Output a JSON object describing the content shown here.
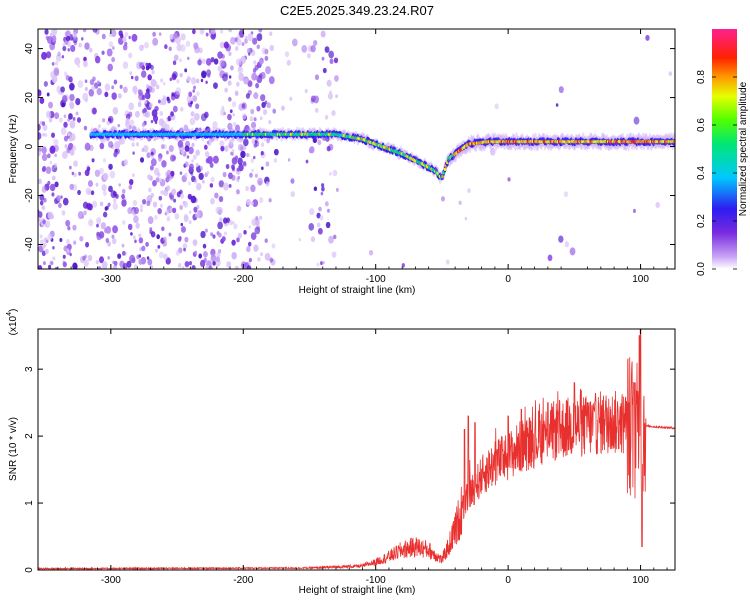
{
  "title": "C2E5.2025.349.23.24.R07",
  "chart_data": [
    {
      "type": "heatmap",
      "name": "spectrogram",
      "xlabel": "Height of straight line (km)",
      "ylabel": "Frequency (Hz)",
      "xlim": [
        -355,
        126
      ],
      "ylim": [
        -50,
        48
      ],
      "xticks": [
        -300,
        -200,
        -100,
        0,
        100
      ],
      "xtick_labels": [
        "-300",
        "-200",
        "-100",
        "0",
        "100"
      ],
      "yticks": [
        -40,
        -20,
        0,
        20,
        40
      ],
      "ytick_labels": [
        "-40",
        "-20",
        "0",
        "20",
        "40"
      ],
      "ridge": {
        "x": [
          -315,
          -280,
          -250,
          -220,
          -190,
          -160,
          -130,
          -110,
          -95,
          -80,
          -65,
          -55,
          -50,
          -45,
          -40,
          -30,
          -15,
          0,
          30,
          60,
          90,
          110,
          126
        ],
        "freq": [
          5,
          5,
          5,
          5,
          5,
          5,
          5,
          3,
          0,
          -3,
          -7,
          -10,
          -13,
          -5,
          -3,
          1,
          2,
          2,
          2,
          2,
          2,
          2,
          2
        ]
      },
      "colorbar": {
        "label": "Normalized spectral amplitude",
        "range": [
          0,
          1
        ],
        "ticks": [
          0.0,
          0.2,
          0.4,
          0.6,
          0.8
        ],
        "tick_labels": [
          "0.0",
          "0.2",
          "0.4",
          "0.6",
          "0.8"
        ]
      }
    },
    {
      "type": "line",
      "name": "snr",
      "xlabel": "Height of straight line (km)",
      "ylabel": "SNR (10 * v/v)",
      "scale_label": "(x10",
      "scale_exp": "4",
      "scale_close": ")",
      "xlim": [
        -355,
        126
      ],
      "ylim": [
        0,
        3.6
      ],
      "xticks": [
        -300,
        -200,
        -100,
        0,
        100
      ],
      "xtick_labels": [
        "-300",
        "-200",
        "-100",
        "0",
        "100"
      ],
      "yticks": [
        0,
        1,
        2,
        3
      ],
      "ytick_labels": [
        "0",
        "1",
        "2",
        "3"
      ],
      "color": "#e8312f",
      "envelope": {
        "x": [
          -355,
          -150,
          -110,
          -100,
          -90,
          -80,
          -70,
          -60,
          -50,
          -45,
          -40,
          -35,
          -30,
          -25,
          -20,
          -10,
          0,
          10,
          20,
          30,
          40,
          50,
          60,
          70,
          80,
          90,
          95,
          100,
          103,
          106,
          110,
          126
        ],
        "y": [
          0.02,
          0.03,
          0.06,
          0.12,
          0.2,
          0.3,
          0.35,
          0.3,
          0.15,
          0.35,
          0.6,
          0.9,
          1.1,
          1.25,
          1.4,
          1.6,
          1.7,
          1.85,
          1.95,
          2.05,
          2.1,
          2.15,
          2.15,
          2.2,
          2.2,
          2.2,
          2.15,
          2.0,
          2.15,
          2.15,
          2.14,
          2.12
        ]
      },
      "spikes": [
        {
          "x": -33,
          "y": 2.1
        },
        {
          "x": -30,
          "y": 2.3
        },
        {
          "x": -25,
          "y": 2.2
        },
        {
          "x": 0,
          "y": 2.3
        },
        {
          "x": 10,
          "y": 2.4
        },
        {
          "x": 30,
          "y": 2.5
        },
        {
          "x": 50,
          "y": 2.8
        },
        {
          "x": 60,
          "y": 2.5
        },
        {
          "x": 95,
          "y": 2.8
        },
        {
          "x": 99,
          "y": 3.5
        },
        {
          "x": 100,
          "y": 3.6
        },
        {
          "x": 101,
          "y": 0.35
        }
      ]
    }
  ],
  "colors": {
    "line": "#e8312f",
    "noise": "#7a2be0",
    "axis": "#000000"
  }
}
